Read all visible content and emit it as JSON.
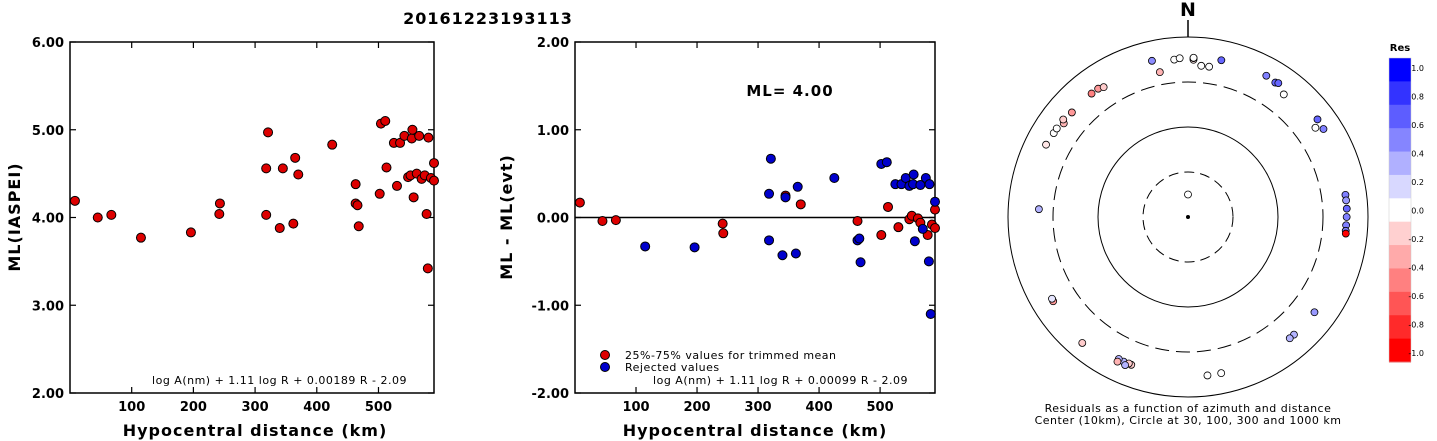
{
  "figure_title": "20161223193113",
  "chart_data": [
    {
      "type": "scatter",
      "ylabel": "ML(IASPEI)",
      "xlabel": "Hypocentral distance (km)",
      "xlim": [
        0,
        590
      ],
      "ylim": [
        2.0,
        6.0
      ],
      "xticks": [
        "100",
        "200",
        "300",
        "400",
        "500"
      ],
      "yticks": [
        "2.00",
        "3.00",
        "4.00",
        "5.00",
        "6.00"
      ],
      "annotation": "log A(nm) + 1.11 log R + 0.00189 R - 2.09",
      "marker_color": "#dd0000",
      "points": [
        [
          8,
          4.19
        ],
        [
          45,
          4.0
        ],
        [
          67,
          4.03
        ],
        [
          115,
          3.77
        ],
        [
          196,
          3.83
        ],
        [
          242,
          4.04
        ],
        [
          243,
          4.16
        ],
        [
          318,
          4.56
        ],
        [
          318,
          4.03
        ],
        [
          321,
          4.97
        ],
        [
          340,
          3.88
        ],
        [
          345,
          4.56
        ],
        [
          362,
          3.93
        ],
        [
          365,
          4.68
        ],
        [
          370,
          4.49
        ],
        [
          425,
          4.83
        ],
        [
          463,
          4.38
        ],
        [
          463,
          4.16
        ],
        [
          466,
          4.14
        ],
        [
          468,
          3.9
        ],
        [
          502,
          4.27
        ],
        [
          504,
          5.07
        ],
        [
          511,
          5.1
        ],
        [
          513,
          4.57
        ],
        [
          525,
          4.85
        ],
        [
          530,
          4.36
        ],
        [
          535,
          4.85
        ],
        [
          542,
          4.93
        ],
        [
          548,
          4.46
        ],
        [
          552,
          4.48
        ],
        [
          554,
          4.9
        ],
        [
          555,
          5.0
        ],
        [
          557,
          4.23
        ],
        [
          562,
          4.5
        ],
        [
          566,
          4.93
        ],
        [
          570,
          4.44
        ],
        [
          575,
          4.48
        ],
        [
          578,
          4.04
        ],
        [
          580,
          3.42
        ],
        [
          581,
          4.91
        ],
        [
          585,
          4.45
        ],
        [
          590,
          4.62
        ],
        [
          592,
          4.42
        ]
      ]
    },
    {
      "type": "scatter",
      "ylabel": "ML - ML(evt)",
      "xlabel": "Hypocentral distance (km)",
      "xlim": [
        0,
        590
      ],
      "ylim": [
        -2.0,
        2.0
      ],
      "xticks": [
        "100",
        "200",
        "300",
        "400",
        "500"
      ],
      "yticks": [
        "-2.00",
        "-1.00",
        "0.00",
        "1.00",
        "2.00"
      ],
      "reference_line": 0.0,
      "ml_label": "ML= 4.00",
      "legend": {
        "position": "bottom-left",
        "entries": [
          {
            "label": "25%-75% values for trimmed mean",
            "color": "#dd0000"
          },
          {
            "label": "Rejected values",
            "color": "#0000cc"
          }
        ]
      },
      "annotation": "log A(nm) + 1.11 log R + 0.00099 R - 2.09",
      "series": [
        {
          "name": "25%-75% values for trimmed mean",
          "color": "#dd0000",
          "points": [
            [
              8,
              0.17
            ],
            [
              45,
              -0.04
            ],
            [
              67,
              -0.03
            ],
            [
              242,
              -0.07
            ],
            [
              243,
              -0.18
            ],
            [
              345,
              0.25
            ],
            [
              370,
              0.15
            ],
            [
              463,
              -0.04
            ],
            [
              502,
              -0.2
            ],
            [
              513,
              0.12
            ],
            [
              530,
              -0.11
            ],
            [
              548,
              -0.02
            ],
            [
              552,
              0.02
            ],
            [
              562,
              -0.01
            ],
            [
              566,
              -0.06
            ],
            [
              578,
              -0.2
            ],
            [
              585,
              -0.08
            ],
            [
              590,
              0.09
            ],
            [
              592,
              -0.12
            ]
          ]
        },
        {
          "name": "Rejected values",
          "color": "#0000cc",
          "points": [
            [
              115,
              -0.33
            ],
            [
              196,
              -0.34
            ],
            [
              318,
              0.27
            ],
            [
              318,
              -0.26
            ],
            [
              321,
              0.67
            ],
            [
              340,
              -0.43
            ],
            [
              345,
              0.23
            ],
            [
              362,
              -0.41
            ],
            [
              365,
              0.35
            ],
            [
              425,
              0.45
            ],
            [
              463,
              -0.26
            ],
            [
              466,
              -0.24
            ],
            [
              468,
              -0.51
            ],
            [
              502,
              0.61
            ],
            [
              511,
              0.63
            ],
            [
              525,
              0.38
            ],
            [
              535,
              0.38
            ],
            [
              542,
              0.45
            ],
            [
              548,
              0.36
            ],
            [
              554,
              0.38
            ],
            [
              555,
              0.49
            ],
            [
              557,
              -0.27
            ],
            [
              566,
              0.37
            ],
            [
              570,
              -0.13
            ],
            [
              575,
              0.45
            ],
            [
              580,
              -0.5
            ],
            [
              581,
              0.38
            ],
            [
              583,
              -1.1
            ],
            [
              590,
              0.18
            ]
          ]
        }
      ]
    },
    {
      "type": "scatter",
      "subtype": "polar",
      "north_label": "N",
      "caption_line1": "Residuals as a function of azimuth and distance",
      "caption_line2": "Center (10km), Circle at 30, 100, 300 and 1000 km",
      "colorbar_title": "Res",
      "colorbar_ticks": [
        "1.0",
        "0.8",
        "0.6",
        "0.4",
        "0.2",
        "0.0",
        "-0.2",
        "-0.4",
        "-0.6",
        "-0.8",
        "-1.0"
      ],
      "colorbar_colors": [
        "#0000ff",
        "#3333ff",
        "#5d5dff",
        "#8585ff",
        "#b0b0ff",
        "#d8d8ff",
        "#ffffff",
        "#ffd0d0",
        "#ffaaaa",
        "#ff8080",
        "#ff5555",
        "#ff2a2a",
        "#ff0000"
      ],
      "points": [
        {
          "az": 0,
          "dist": 15,
          "res": 0.0
        },
        {
          "az": 38,
          "dist": 520,
          "res": 0.0
        },
        {
          "az": 55,
          "dist": 520,
          "res": 0.0
        },
        {
          "az": 347,
          "dist": 590,
          "res": 0.45
        },
        {
          "az": 349,
          "dist": 420,
          "res": -0.3
        },
        {
          "az": 355,
          "dist": 555,
          "res": 0.0
        },
        {
          "az": 357,
          "dist": 570,
          "res": 0.0
        },
        {
          "az": 2,
          "dist": 545,
          "res": -0.1
        },
        {
          "az": 5,
          "dist": 470,
          "res": 0.0
        },
        {
          "az": 8,
          "dist": 470,
          "res": 0.0
        },
        {
          "az": 2,
          "dist": 570,
          "res": -0.2
        },
        {
          "az": 2,
          "dist": 575,
          "res": 0.0
        },
        {
          "az": 12,
          "dist": 590,
          "res": 0.6
        },
        {
          "az": 29,
          "dist": 610,
          "res": 0.5
        },
        {
          "az": 33,
          "dist": 590,
          "res": 0.6
        },
        {
          "az": 34,
          "dist": 610,
          "res": 0.6
        },
        {
          "az": 53,
          "dist": 620,
          "res": 0.6
        },
        {
          "az": 57,
          "dist": 610,
          "res": 0.5
        },
        {
          "az": 82,
          "dist": 570,
          "res": 0.5
        },
        {
          "az": 84,
          "dist": 570,
          "res": 0.4
        },
        {
          "az": 87,
          "dist": 570,
          "res": 0.6
        },
        {
          "az": 90,
          "dist": 565,
          "res": 0.5
        },
        {
          "az": 93,
          "dist": 560,
          "res": 0.5
        },
        {
          "az": 95,
          "dist": 560,
          "res": 0.5
        },
        {
          "az": 96,
          "dist": 565,
          "res": -1.0
        },
        {
          "az": 127,
          "dist": 560,
          "res": 0.4
        },
        {
          "az": 138,
          "dist": 560,
          "res": 0.3
        },
        {
          "az": 140,
          "dist": 560,
          "res": 0.3
        },
        {
          "az": 168,
          "dist": 580,
          "res": 0.0
        },
        {
          "az": 173,
          "dist": 580,
          "res": 0.0
        },
        {
          "az": 201,
          "dist": 560,
          "res": -0.2
        },
        {
          "az": 204,
          "dist": 560,
          "res": 0.3
        },
        {
          "az": 202,
          "dist": 555,
          "res": -0.2
        },
        {
          "az": 206,
          "dist": 555,
          "res": 0.3
        },
        {
          "az": 203,
          "dist": 600,
          "res": 0.3
        },
        {
          "az": 206,
          "dist": 600,
          "res": -0.3
        },
        {
          "az": 220,
          "dist": 660,
          "res": -0.2
        },
        {
          "az": 238,
          "dist": 570,
          "res": -0.4
        },
        {
          "az": 239,
          "dist": 565,
          "res": 0.1
        },
        {
          "az": 273,
          "dist": 440,
          "res": 0.3
        },
        {
          "az": 297,
          "dist": 575,
          "res": -0.1
        },
        {
          "az": 302,
          "dist": 560,
          "res": 0.0
        },
        {
          "az": 304,
          "dist": 560,
          "res": 0.0
        },
        {
          "az": 307,
          "dist": 520,
          "res": -0.3
        },
        {
          "az": 308,
          "dist": 560,
          "res": -0.2
        },
        {
          "az": 312,
          "dist": 530,
          "res": -0.4
        },
        {
          "az": 322,
          "dist": 535,
          "res": -0.5
        },
        {
          "az": 325,
          "dist": 535,
          "res": -0.4
        },
        {
          "az": 327,
          "dist": 510,
          "res": -0.2
        }
      ]
    }
  ]
}
